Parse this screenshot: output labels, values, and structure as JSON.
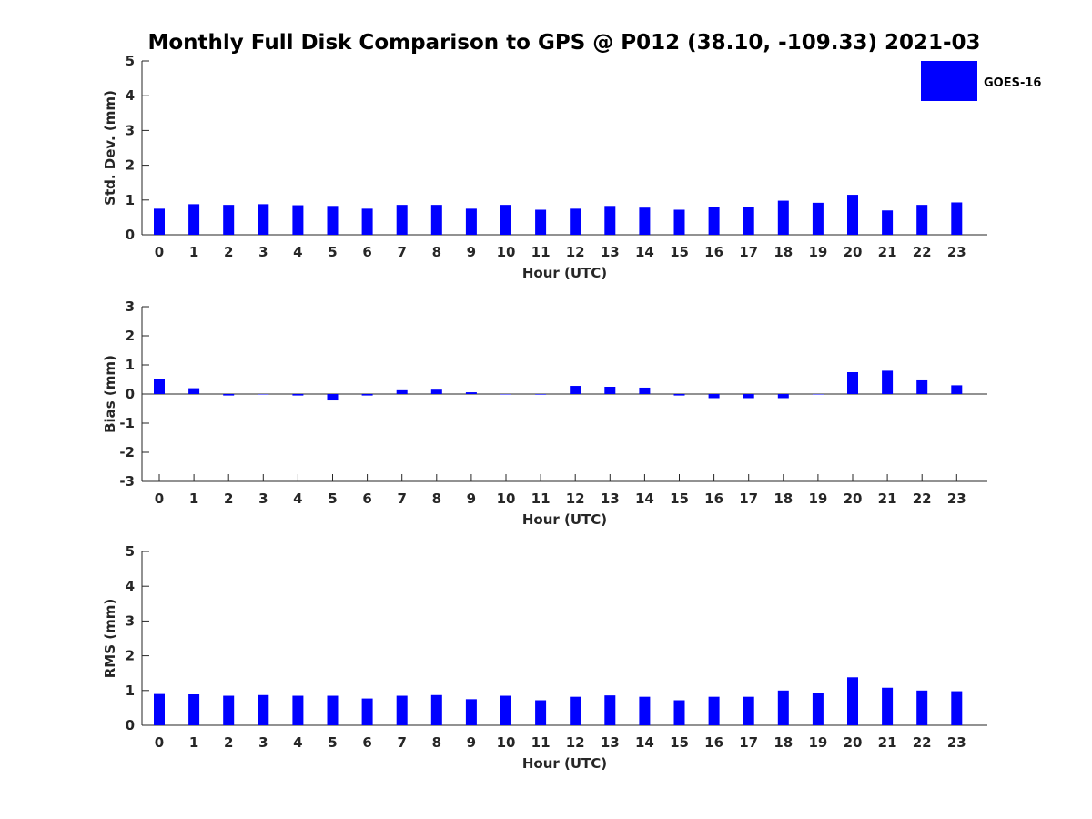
{
  "title": "Monthly Full Disk Comparison to GPS @ P012 (38.10, -109.33) 2021-03",
  "legend": {
    "label": "GOES-16",
    "color": "#0000ff"
  },
  "chart_data": [
    {
      "type": "bar",
      "xlabel": "Hour (UTC)",
      "ylabel": "Std. Dev. (mm)",
      "ylim": [
        0,
        5
      ],
      "yticks": [
        "0",
        "1",
        "2",
        "3",
        "4",
        "5"
      ],
      "categories": [
        "0",
        "1",
        "2",
        "3",
        "4",
        "5",
        "6",
        "7",
        "8",
        "9",
        "10",
        "11",
        "12",
        "13",
        "14",
        "15",
        "16",
        "17",
        "18",
        "19",
        "20",
        "21",
        "22",
        "23"
      ],
      "series": [
        {
          "name": "GOES-16",
          "color": "#0000ff",
          "values": [
            0.75,
            0.88,
            0.86,
            0.88,
            0.85,
            0.83,
            0.75,
            0.86,
            0.86,
            0.75,
            0.86,
            0.72,
            0.75,
            0.83,
            0.78,
            0.72,
            0.8,
            0.8,
            0.98,
            0.92,
            1.15,
            0.7,
            0.86,
            0.93
          ]
        }
      ]
    },
    {
      "type": "bar",
      "xlabel": "Hour (UTC)",
      "ylabel": "Bias (mm)",
      "ylim": [
        -3,
        3
      ],
      "yticks": [
        "-3",
        "-2",
        "-1",
        "0",
        "1",
        "2",
        "3"
      ],
      "categories": [
        "0",
        "1",
        "2",
        "3",
        "4",
        "5",
        "6",
        "7",
        "8",
        "9",
        "10",
        "11",
        "12",
        "13",
        "14",
        "15",
        "16",
        "17",
        "18",
        "19",
        "20",
        "21",
        "22",
        "23"
      ],
      "series": [
        {
          "name": "GOES-16",
          "color": "#0000ff",
          "values": [
            0.5,
            0.2,
            -0.05,
            0.0,
            -0.05,
            -0.22,
            -0.05,
            0.13,
            0.15,
            0.06,
            0.0,
            -0.02,
            0.28,
            0.25,
            0.22,
            -0.05,
            -0.14,
            -0.14,
            -0.14,
            0.0,
            0.75,
            0.8,
            0.47,
            0.3
          ]
        }
      ]
    },
    {
      "type": "bar",
      "xlabel": "Hour (UTC)",
      "ylabel": "RMS (mm)",
      "ylim": [
        0,
        5
      ],
      "yticks": [
        "0",
        "1",
        "2",
        "3",
        "4",
        "5"
      ],
      "categories": [
        "0",
        "1",
        "2",
        "3",
        "4",
        "5",
        "6",
        "7",
        "8",
        "9",
        "10",
        "11",
        "12",
        "13",
        "14",
        "15",
        "16",
        "17",
        "18",
        "19",
        "20",
        "21",
        "22",
        "23"
      ],
      "series": [
        {
          "name": "GOES-16",
          "color": "#0000ff",
          "values": [
            0.9,
            0.89,
            0.85,
            0.87,
            0.85,
            0.85,
            0.77,
            0.85,
            0.87,
            0.75,
            0.85,
            0.72,
            0.82,
            0.86,
            0.82,
            0.72,
            0.82,
            0.82,
            1.0,
            0.93,
            1.38,
            1.08,
            1.0,
            0.98
          ]
        }
      ]
    }
  ]
}
